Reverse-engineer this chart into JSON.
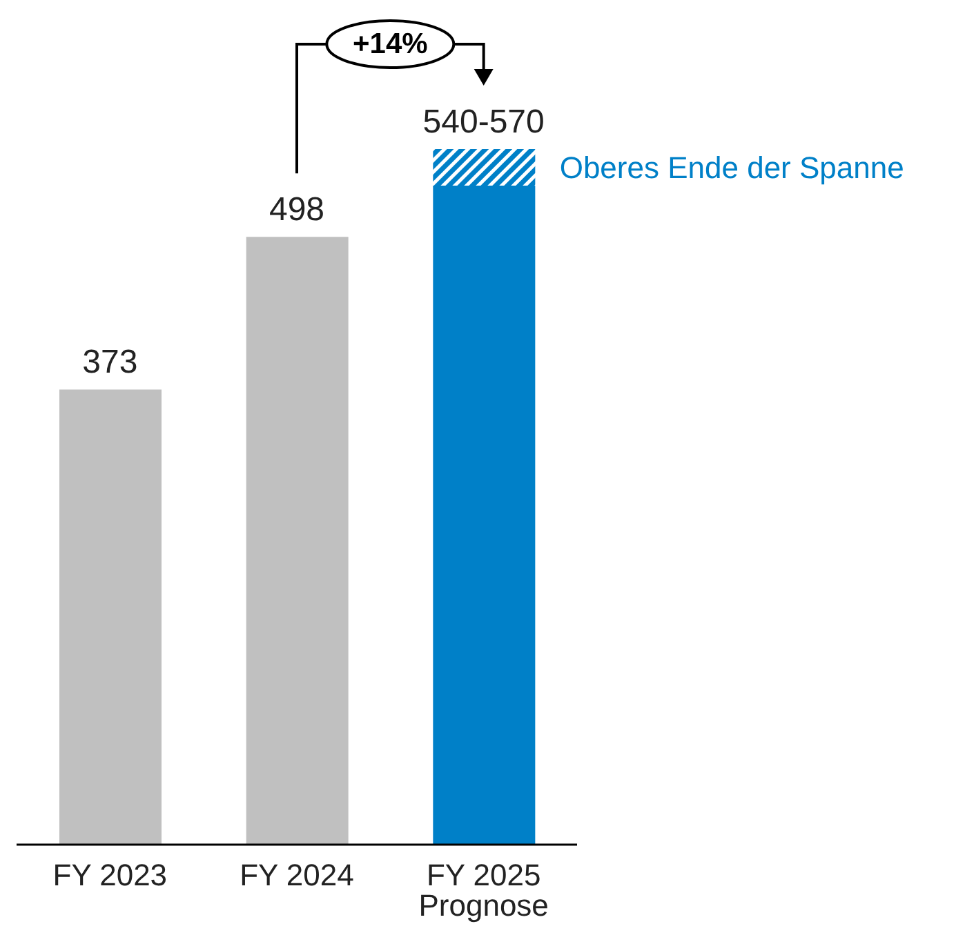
{
  "chart_data": {
    "type": "bar",
    "stacked": true,
    "categories": [
      "FY 2023",
      "FY 2024",
      "FY 2025 Prognose"
    ],
    "series": [
      {
        "colors": [
          "#c0c0c0",
          "#c0c0c0",
          "#0080c8"
        ],
        "values": [
          373,
          498,
          540
        ],
        "value_labels": [
          "373",
          "498",
          "540-570"
        ]
      },
      {
        "name": "Oberes Ende der Spanne",
        "color": "#0080c8",
        "values": [
          null,
          null,
          30
        ]
      }
    ],
    "annotations": [
      "+14%"
    ],
    "legend": false,
    "grid": false
  }
}
